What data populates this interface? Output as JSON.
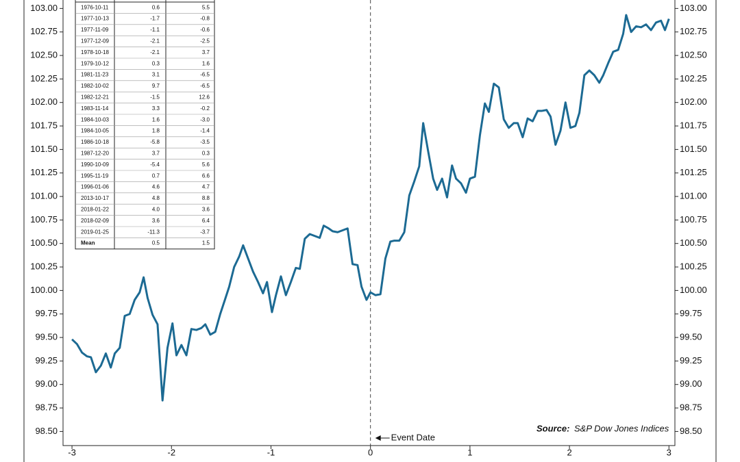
{
  "chart_data": {
    "type": "line",
    "xlim": [
      -3.09,
      3.06
    ],
    "xticks": [
      -3,
      -2,
      -1,
      0,
      1,
      2,
      3
    ],
    "ylim": [
      98.35,
      103.09
    ],
    "yticks": [
      {
        "value": 98.5,
        "label": "98.50"
      },
      {
        "value": 98.75,
        "label": "98.75"
      },
      {
        "value": 99,
        "label": "99.00"
      },
      {
        "value": 99.25,
        "label": "99.25"
      },
      {
        "value": 99.5,
        "label": "99.50"
      },
      {
        "value": 99.75,
        "label": "99.75"
      },
      {
        "value": 100,
        "label": "100.00"
      },
      {
        "value": 100.25,
        "label": "100.25"
      },
      {
        "value": 100.5,
        "label": "100.50"
      },
      {
        "value": 100.75,
        "label": "100.75"
      },
      {
        "value": 101,
        "label": "101.00"
      },
      {
        "value": 101.25,
        "label": "101.25"
      },
      {
        "value": 101.5,
        "label": "101.50"
      },
      {
        "value": 101.75,
        "label": "101.75"
      },
      {
        "value": 102,
        "label": "102.00"
      },
      {
        "value": 102.25,
        "label": "102.25"
      },
      {
        "value": 102.5,
        "label": "102.50"
      },
      {
        "value": 102.75,
        "label": "102.75"
      },
      {
        "value": 103,
        "label": "103.00"
      }
    ],
    "color": "#1c6a93",
    "x": [
      -3.0,
      -2.95,
      -2.9,
      -2.85,
      -2.81,
      -2.76,
      -2.71,
      -2.66,
      -2.61,
      -2.57,
      -2.52,
      -2.47,
      -2.42,
      -2.37,
      -2.32,
      -2.28,
      -2.24,
      -2.19,
      -2.14,
      -2.09,
      -2.04,
      -1.99,
      -1.95,
      -1.9,
      -1.85,
      -1.8,
      -1.75,
      -1.7,
      -1.66,
      -1.61,
      -1.56,
      -1.51,
      -1.46,
      -1.42,
      -1.37,
      -1.32,
      -1.28,
      -1.23,
      -1.18,
      -1.13,
      -1.08,
      -1.04,
      -0.99,
      -0.95,
      -0.9,
      -0.85,
      -0.8,
      -0.75,
      -0.71,
      -0.66,
      -0.61,
      -0.56,
      -0.51,
      -0.47,
      -0.42,
      -0.38,
      -0.33,
      -0.28,
      -0.23,
      -0.18,
      -0.13,
      -0.09,
      -0.04,
      0.0,
      0.05,
      0.1,
      0.15,
      0.2,
      0.24,
      0.29,
      0.34,
      0.39,
      0.44,
      0.49,
      0.53,
      0.58,
      0.63,
      0.67,
      0.72,
      0.77,
      0.82,
      0.86,
      0.91,
      0.96,
      1.0,
      1.05,
      1.1,
      1.15,
      1.19,
      1.24,
      1.29,
      1.34,
      1.39,
      1.44,
      1.48,
      1.53,
      1.58,
      1.63,
      1.68,
      1.72,
      1.77,
      1.81,
      1.86,
      1.91,
      1.96,
      2.01,
      2.06,
      2.1,
      2.15,
      2.2,
      2.25,
      2.3,
      2.34,
      2.39,
      2.44,
      2.49,
      2.54,
      2.57,
      2.62,
      2.67,
      2.72,
      2.77,
      2.82,
      2.87,
      2.92,
      2.96,
      3.0
    ],
    "values": [
      99.48,
      99.43,
      99.34,
      99.3,
      99.29,
      99.13,
      99.2,
      99.33,
      99.18,
      99.33,
      99.39,
      99.73,
      99.75,
      99.9,
      99.98,
      100.14,
      99.92,
      99.74,
      99.64,
      98.83,
      99.39,
      99.65,
      99.31,
      99.42,
      99.31,
      99.59,
      99.58,
      99.6,
      99.64,
      99.53,
      99.56,
      99.75,
      99.91,
      100.04,
      100.25,
      100.36,
      100.48,
      100.34,
      100.2,
      100.09,
      99.97,
      100.09,
      99.77,
      99.95,
      100.15,
      99.95,
      100.09,
      100.24,
      100.23,
      100.55,
      100.6,
      100.58,
      100.56,
      100.69,
      100.66,
      100.63,
      100.62,
      100.64,
      100.66,
      100.28,
      100.27,
      100.04,
      99.9,
      99.98,
      99.95,
      99.96,
      100.34,
      100.52,
      100.53,
      100.53,
      100.62,
      101.01,
      101.16,
      101.32,
      101.78,
      101.48,
      101.19,
      101.07,
      101.19,
      100.99,
      101.33,
      101.19,
      101.14,
      101.04,
      101.19,
      101.21,
      101.65,
      101.99,
      101.9,
      102.2,
      102.16,
      101.82,
      101.73,
      101.78,
      101.78,
      101.63,
      101.83,
      101.8,
      101.91,
      101.91,
      101.92,
      101.85,
      101.55,
      101.7,
      102.0,
      101.73,
      101.75,
      101.89,
      102.29,
      102.34,
      102.29,
      102.21,
      102.29,
      102.42,
      102.54,
      102.56,
      102.73,
      102.93,
      102.75,
      102.81,
      102.8,
      102.83,
      102.77,
      102.85,
      102.87,
      102.77,
      102.89
    ],
    "event_line": {
      "x": 0,
      "label": "Event Date"
    },
    "source_label": "Source:",
    "source": "S&P Dow Jones Indices"
  },
  "table": {
    "rows": [
      [
        "1976-10-11",
        "0.6",
        "5.5"
      ],
      [
        "1977-10-13",
        "-1.7",
        "-0.8"
      ],
      [
        "1977-11-09",
        "-1.1",
        "-0.6"
      ],
      [
        "1977-12-09",
        "-2.1",
        "-2.5"
      ],
      [
        "1978-10-18",
        "-2.1",
        "3.7"
      ],
      [
        "1979-10-12",
        "0.3",
        "1.6"
      ],
      [
        "1981-11-23",
        "3.1",
        "-6.5"
      ],
      [
        "1982-10-02",
        "9.7",
        "-6.5"
      ],
      [
        "1982-12-21",
        "-1.5",
        "12.6"
      ],
      [
        "1983-11-14",
        "3.3",
        "-0.2"
      ],
      [
        "1984-10-03",
        "1.6",
        "-3.0"
      ],
      [
        "1984-10-05",
        "1.8",
        "-1.4"
      ],
      [
        "1986-10-18",
        "-5.8",
        "-3.5"
      ],
      [
        "1987-12-20",
        "3.7",
        "0.3"
      ],
      [
        "1990-10-09",
        "-5.4",
        "5.6"
      ],
      [
        "1995-11-19",
        "0.7",
        "6.6"
      ],
      [
        "1996-01-06",
        "4.6",
        "4.7"
      ],
      [
        "2013-10-17",
        "4.8",
        "8.8"
      ],
      [
        "2018-01-22",
        "4.0",
        "3.6"
      ],
      [
        "2018-02-09",
        "3.6",
        "6.4"
      ],
      [
        "2019-01-25",
        "-11.3",
        "-3.7"
      ],
      [
        "Mean",
        "0.5",
        "1.5"
      ]
    ]
  }
}
